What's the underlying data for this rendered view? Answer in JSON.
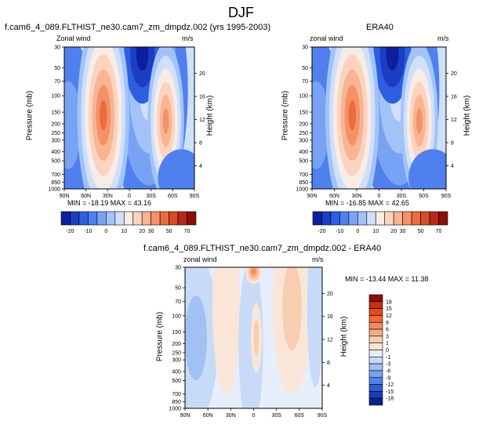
{
  "title": "DJF",
  "panels": [
    {
      "title": "f.cam6_4_089.FLTHIST_ne30.cam7_zm_dmpdz.002 (yrs 1995-2003)",
      "left_label": "Zonal wind",
      "right_label": "m/s",
      "stats": "MIN = -18.19   MAX = 43.16"
    },
    {
      "title": "ERA40",
      "left_label": "zonal wind",
      "right_label": "m/s",
      "stats": "MIN = -16.85   MAX = 42.65"
    },
    {
      "title": "f.cam6_4_089.FLTHIST_ne30.cam7_zm_dmpdz.002 - ERA40",
      "left_label": "zonal wind",
      "right_label": "m/s",
      "stats": "MIN = -13.44   MAX = 11.38"
    }
  ],
  "axes": {
    "ylabel": "Pressure (mb)",
    "ylabel_right": "Height (km)",
    "pressure_ticks": [
      "30",
      "50",
      "70",
      "100",
      "150",
      "200",
      "250",
      "300",
      "400",
      "500",
      "700",
      "850",
      "1000"
    ],
    "height_ticks": [
      "20",
      "16",
      "12",
      "8",
      "4"
    ],
    "lat_ticks": [
      "90N",
      "60N",
      "30N",
      "0",
      "30S",
      "60S",
      "90S"
    ]
  },
  "chart_data": [
    {
      "type": "heatmap",
      "title": "f.cam6_4_089.FLTHIST_ne30.cam7_zm_dmpdz.002 (yrs 1995-2003)",
      "x_range": [
        "90N",
        "90S"
      ],
      "y_range_mb": [
        1000,
        30
      ],
      "min": -18.19,
      "max": 43.16,
      "features": [
        {
          "lat": "30N",
          "pressure_mb": 200,
          "value": 43
        },
        {
          "lat": "50S",
          "pressure_mb": 200,
          "value": 30
        },
        {
          "lat": "15S",
          "pressure_mb": 30,
          "value": -18
        }
      ]
    },
    {
      "type": "heatmap",
      "title": "ERA40",
      "x_range": [
        "90N",
        "90S"
      ],
      "y_range_mb": [
        1000,
        30
      ],
      "min": -16.85,
      "max": 42.65,
      "features": [
        {
          "lat": "30N",
          "pressure_mb": 200,
          "value": 42
        },
        {
          "lat": "45S",
          "pressure_mb": 200,
          "value": 30
        },
        {
          "lat": "15S",
          "pressure_mb": 30,
          "value": -17
        }
      ]
    },
    {
      "type": "heatmap",
      "title": "f.cam6_4_089.FLTHIST_ne30.cam7_zm_dmpdz.002 - ERA40",
      "x_range": [
        "90N",
        "90S"
      ],
      "y_range_mb": [
        1000,
        30
      ],
      "min": -13.44,
      "max": 11.38,
      "features": [
        {
          "lat": "5N",
          "pressure_mb": 30,
          "value": 11
        },
        {
          "lat": "60S",
          "pressure_mb": 60,
          "value": 5
        },
        {
          "lat": "10S",
          "pressure_mb": 400,
          "value": 3
        }
      ]
    }
  ],
  "colorbars": {
    "top": {
      "labels": [
        "-20",
        "-10",
        "0",
        "10",
        "20",
        "30",
        "50",
        "70"
      ],
      "colors": [
        "#0d1f9c",
        "#1a3ec4",
        "#2f5ee0",
        "#4f80ee",
        "#78a3f4",
        "#a3c3f8",
        "#cfe0fb",
        "#f8ece6",
        "#fbd3bf",
        "#f8b493",
        "#f39268",
        "#ec6c42",
        "#d94a26",
        "#b42a14",
        "#8a0f08"
      ]
    },
    "bottom": {
      "labels": [
        "18",
        "15",
        "12",
        "9",
        "6",
        "3",
        "1",
        "0",
        "-1",
        "-3",
        "-6",
        "-9",
        "-12",
        "-15",
        "-18"
      ],
      "colors": [
        "#8a0f08",
        "#c22f12",
        "#e34a1d",
        "#f26838",
        "#f48b5e",
        "#f6ac86",
        "#f8cdb0",
        "#f9e6d8",
        "#e6eefb",
        "#c7daf8",
        "#a2c0f4",
        "#7ba2ee",
        "#5582e6",
        "#2f5cd6",
        "#1a3bb5",
        "#0d1f8c"
      ]
    }
  }
}
